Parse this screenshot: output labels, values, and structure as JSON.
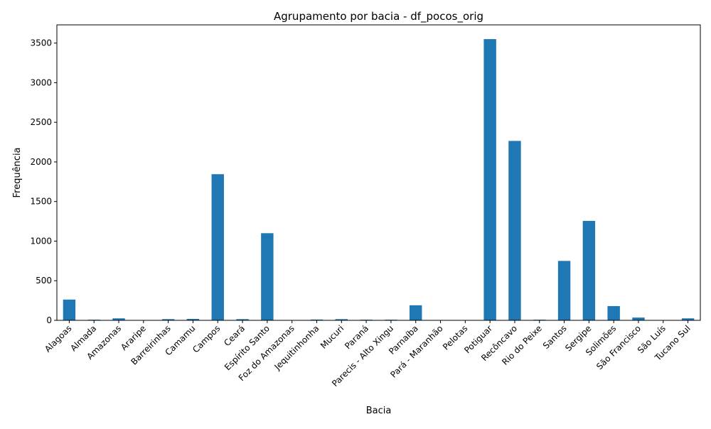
{
  "chart_data": {
    "type": "bar",
    "title": "Agrupamento por bacia - df_pocos_orig",
    "xlabel": "Bacia",
    "ylabel": "Frequência",
    "ylim": [
      0,
      3730
    ],
    "yticks": [
      0,
      500,
      1000,
      1500,
      2000,
      2500,
      3000,
      3500
    ],
    "grid": false,
    "bar_color": "#1f77b4",
    "categories": [
      "Alagoas",
      "Almada",
      "Amazonas",
      "Araripe",
      "Barreirinhas",
      "Camamu",
      "Campos",
      "Ceará",
      "Espírito Santo",
      "Foz do Amazonas",
      "Jequitinhonha",
      "Mucuri",
      "Paraná",
      "Parecis - Alto Xingu",
      "Parnaíba",
      "Pará - Maranhão",
      "Pelotas",
      "Potiguar",
      "Recôncavo",
      "Rio do Peixe",
      "Santos",
      "Sergipe",
      "Solimões",
      "São Francisco",
      "São Luís",
      "Tucano Sul"
    ],
    "values": [
      262,
      8,
      25,
      3,
      15,
      18,
      1845,
      15,
      1100,
      2,
      10,
      15,
      8,
      8,
      190,
      3,
      2,
      3550,
      2265,
      8,
      750,
      1255,
      180,
      35,
      2,
      25
    ]
  }
}
